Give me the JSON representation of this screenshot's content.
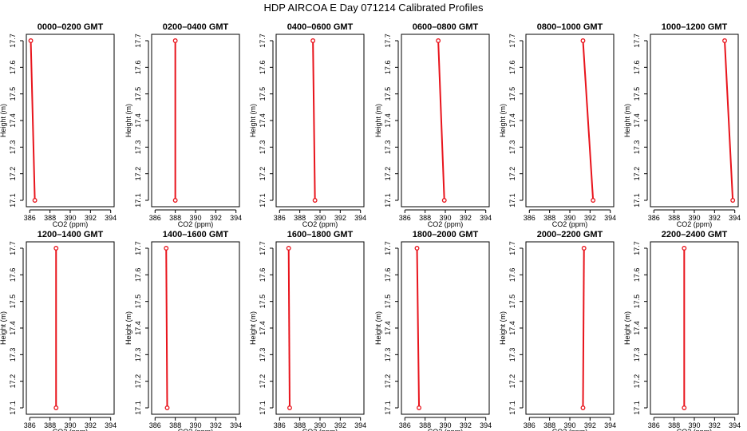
{
  "colors": {
    "series": "#e8141c",
    "axis": "#000000",
    "background": "#ffffff"
  },
  "chart_data": {
    "title": "HDP  AIRCOA E  Day 071214  Calibrated Profiles",
    "type": "line",
    "xlabel": "CO2 (ppm)",
    "ylabel": "Height (m)",
    "xlim": [
      386,
      394
    ],
    "ylim": [
      17.1,
      17.7
    ],
    "xticks": [
      "386",
      "388",
      "390",
      "392",
      "394"
    ],
    "yticks": [
      "17.1",
      "17.2",
      "17.3",
      "17.4",
      "17.5",
      "17.6",
      "17.7"
    ],
    "panels": [
      {
        "label": "0000–0200 GMT",
        "x": [
          386.1,
          386.5
        ],
        "y": [
          17.7,
          17.1
        ]
      },
      {
        "label": "0200–0400 GMT",
        "x": [
          388.0,
          388.0
        ],
        "y": [
          17.7,
          17.1
        ]
      },
      {
        "label": "0400–0600 GMT",
        "x": [
          389.3,
          389.5
        ],
        "y": [
          17.7,
          17.1
        ]
      },
      {
        "label": "0600–0800 GMT",
        "x": [
          389.3,
          389.9
        ],
        "y": [
          17.7,
          17.1
        ]
      },
      {
        "label": "0800–1000 GMT",
        "x": [
          391.3,
          392.3
        ],
        "y": [
          17.7,
          17.1
        ]
      },
      {
        "label": "1000–1200 GMT",
        "x": [
          393.0,
          393.8
        ],
        "y": [
          17.7,
          17.1
        ]
      },
      {
        "label": "1200–1400 GMT",
        "x": [
          388.6,
          388.6
        ],
        "y": [
          17.7,
          17.1
        ]
      },
      {
        "label": "1400–1600 GMT",
        "x": [
          387.1,
          387.2
        ],
        "y": [
          17.7,
          17.1
        ]
      },
      {
        "label": "1600–1800 GMT",
        "x": [
          386.9,
          387.0
        ],
        "y": [
          17.7,
          17.1
        ]
      },
      {
        "label": "1800–2000 GMT",
        "x": [
          387.2,
          387.4
        ],
        "y": [
          17.7,
          17.1
        ]
      },
      {
        "label": "2000–2200 GMT",
        "x": [
          391.4,
          391.3
        ],
        "y": [
          17.7,
          17.1
        ]
      },
      {
        "label": "2200–2400 GMT",
        "x": [
          389.0,
          389.0
        ],
        "y": [
          17.7,
          17.1
        ]
      }
    ]
  }
}
